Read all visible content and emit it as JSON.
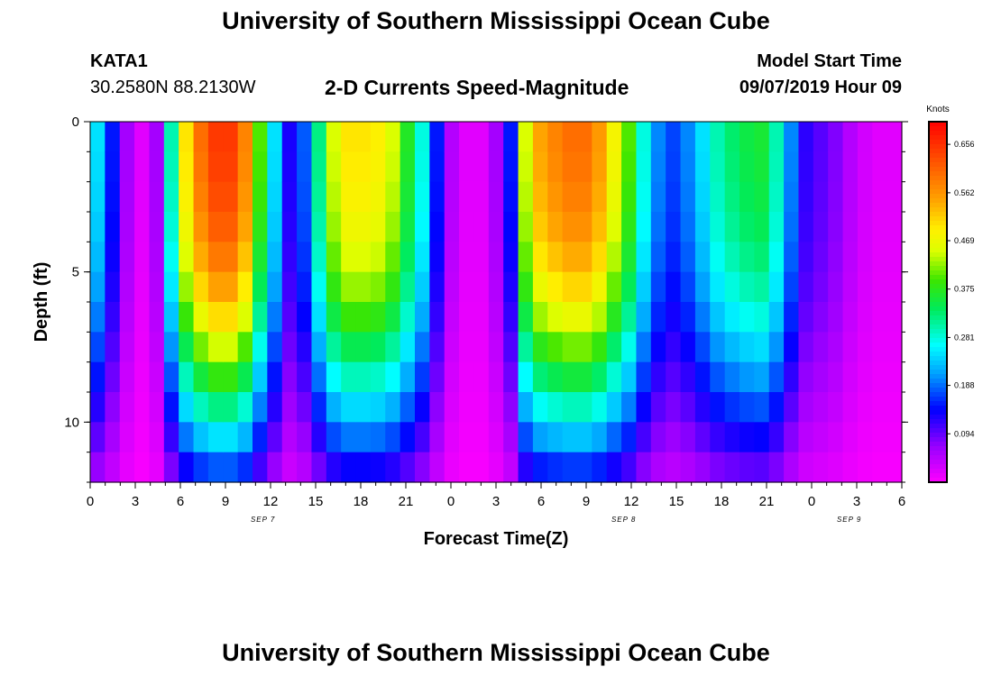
{
  "page": {
    "title": "University of Southern Mississippi Ocean Cube",
    "footer_title": "University of Southern Mississippi Ocean Cube",
    "station": "KATA1",
    "coords": "30.2580N 88.2130W",
    "subtitle": "2-D Currents Speed-Magnitude",
    "model_label": "Model Start Time",
    "model_time": "09/07/2019 Hour 09"
  },
  "chart_data": {
    "type": "heatmap",
    "title": "2-D Currents Speed-Magnitude",
    "xlabel": "Forecast Time(Z)",
    "ylabel": "Depth (ft)",
    "x_range_hours": [
      0,
      54
    ],
    "x_ticks": [
      "0",
      "3",
      "6",
      "9",
      "12",
      "15",
      "18",
      "21",
      "0",
      "3",
      "6",
      "9",
      "12",
      "15",
      "18",
      "21",
      "0",
      "3",
      "6"
    ],
    "x_tick_hours": [
      0,
      3,
      6,
      9,
      12,
      15,
      18,
      21,
      24,
      27,
      30,
      33,
      36,
      39,
      42,
      45,
      48,
      51,
      54
    ],
    "date_labels": [
      {
        "text": "SEP 7",
        "hour": 11.5
      },
      {
        "text": "SEP 8",
        "hour": 35.5
      },
      {
        "text": "SEP 9",
        "hour": 50.5
      }
    ],
    "y_range_ft": [
      0,
      12
    ],
    "y_inverted": true,
    "y_ticks": [
      "0",
      "5",
      "10"
    ],
    "y_tick_values": [
      0,
      5,
      10
    ],
    "colorbar": {
      "unit": "Knots",
      "range": [
        0,
        0.7
      ],
      "labels": [
        "0.656",
        "0.562",
        "0.469",
        "0.375",
        "0.281",
        "0.188",
        "0.094"
      ],
      "label_values": [
        0.656,
        0.562,
        0.469,
        0.375,
        0.281,
        0.188,
        0.094
      ]
    },
    "profile_hours": [
      0,
      1,
      2,
      3,
      4,
      5,
      6,
      7,
      8,
      9,
      10,
      11,
      12,
      13,
      14,
      15,
      16,
      17,
      18,
      19,
      20,
      21,
      22,
      23,
      24,
      25,
      26,
      27,
      28,
      29,
      30,
      31,
      32,
      33,
      34,
      35,
      36,
      37,
      38,
      39,
      40,
      41,
      42,
      43,
      44,
      45,
      46,
      47,
      48,
      49,
      50,
      51,
      52,
      53,
      54
    ],
    "surface_speed_knots": [
      0.25,
      0.15,
      0.06,
      0.02,
      0.06,
      0.3,
      0.5,
      0.6,
      0.65,
      0.65,
      0.58,
      0.4,
      0.25,
      0.13,
      0.18,
      0.32,
      0.45,
      0.5,
      0.5,
      0.49,
      0.45,
      0.37,
      0.28,
      0.15,
      0.05,
      0.02,
      0.02,
      0.06,
      0.15,
      0.45,
      0.55,
      0.58,
      0.6,
      0.6,
      0.56,
      0.48,
      0.4,
      0.28,
      0.2,
      0.17,
      0.2,
      0.25,
      0.3,
      0.33,
      0.35,
      0.36,
      0.3,
      0.2,
      0.12,
      0.1,
      0.08,
      0.05,
      0.03,
      0.02,
      0.02
    ],
    "speed_factor_at_depth_ft": {
      "depths": [
        0,
        2,
        4,
        6,
        8,
        10,
        12
      ],
      "factors": [
        1.0,
        0.98,
        0.93,
        0.82,
        0.64,
        0.44,
        0.22
      ]
    }
  }
}
